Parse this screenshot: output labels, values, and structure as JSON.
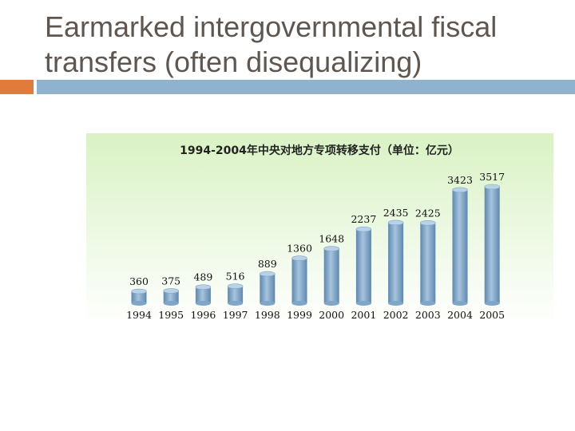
{
  "slide": {
    "title": "Earmarked intergovernmental fiscal transfers (often disequalizing)"
  },
  "colors": {
    "accent_orange": "#e07b3c",
    "accent_blue": "#8fb3cf",
    "bar": "#7ea6c9",
    "bar_top": "#b9d2e8",
    "title_text": "#5f5650"
  },
  "chart_data": {
    "type": "bar",
    "title": "1994-2004年中央对地方专项转移支付（单位：亿元）",
    "categories": [
      "1994",
      "1995",
      "1996",
      "1997",
      "1998",
      "1999",
      "2000",
      "2001",
      "2002",
      "2003",
      "2004",
      "2005"
    ],
    "values": [
      360,
      375,
      489,
      516,
      889,
      1360,
      1648,
      2237,
      2435,
      2425,
      3423,
      3517
    ],
    "value_labels": [
      "360",
      "375",
      "489",
      "516",
      "889",
      "1360",
      "1648",
      "2237",
      "2435",
      "2425",
      "3423",
      "3517"
    ],
    "xlabel": "",
    "ylabel": "",
    "ylim": [
      0,
      3517
    ],
    "grid": false,
    "legend": "none"
  }
}
